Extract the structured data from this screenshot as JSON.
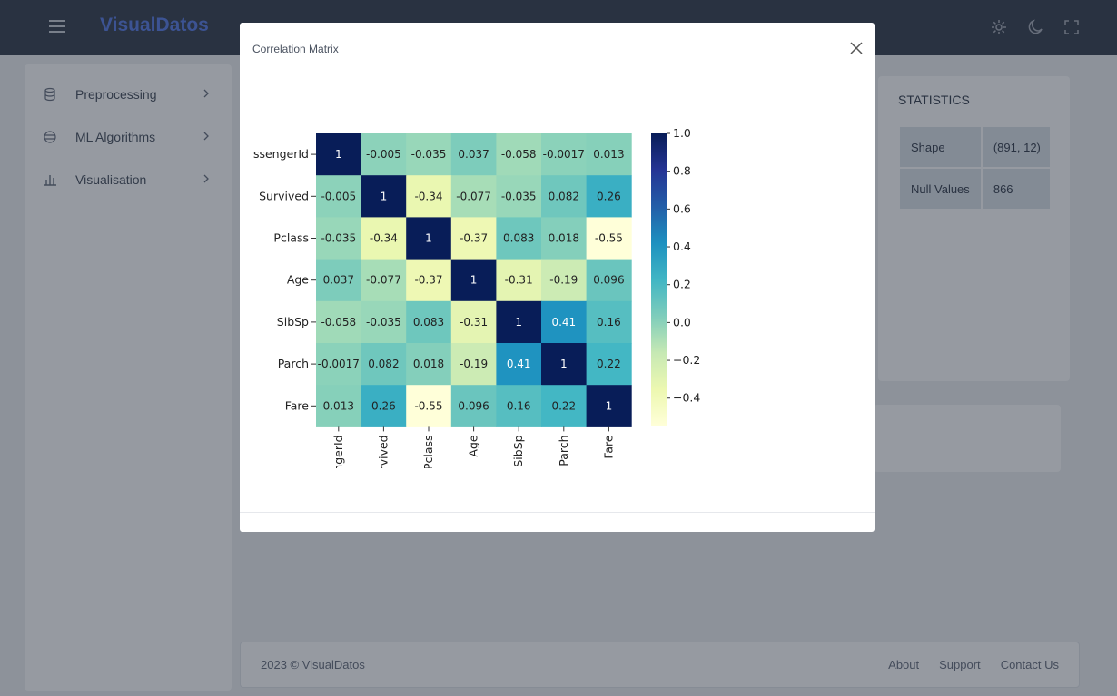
{
  "app": {
    "brand": "VisualDatos"
  },
  "topbar": {
    "icons": [
      "menu-icon",
      "gear-icon",
      "moon-icon",
      "fullscreen-icon"
    ]
  },
  "sidebar": {
    "items": [
      {
        "label": "Preprocessing",
        "icon": "database-icon"
      },
      {
        "label": "ML Algorithms",
        "icon": "layers-icon"
      },
      {
        "label": "Visualisation",
        "icon": "bar-chart-icon"
      }
    ]
  },
  "statistics": {
    "title": "STATISTICS",
    "rows": [
      {
        "label": "Shape",
        "value": "(891, 12)"
      },
      {
        "label": "Null Values",
        "value": "866"
      }
    ]
  },
  "footer": {
    "copyright": "2023 © VisualDatos",
    "links": [
      "About",
      "Support",
      "Contact Us"
    ]
  },
  "modal": {
    "title": "Correlation Matrix"
  },
  "chart_data": {
    "type": "heatmap",
    "title": "",
    "row_labels": [
      "PassengerId",
      "Survived",
      "Pclass",
      "Age",
      "SibSp",
      "Parch",
      "Fare"
    ],
    "col_labels": [
      "PassengerId",
      "Survived",
      "Pclass",
      "Age",
      "SibSp",
      "Parch",
      "Fare"
    ],
    "values": [
      [
        1,
        -0.005,
        -0.035,
        0.037,
        -0.058,
        -0.0017,
        0.013
      ],
      [
        -0.005,
        1,
        -0.34,
        -0.077,
        -0.035,
        0.082,
        0.26
      ],
      [
        -0.035,
        -0.34,
        1,
        -0.37,
        0.083,
        0.018,
        -0.55
      ],
      [
        0.037,
        -0.077,
        -0.37,
        1,
        -0.31,
        -0.19,
        0.096
      ],
      [
        -0.058,
        -0.035,
        0.083,
        -0.31,
        1,
        0.41,
        0.16
      ],
      [
        -0.0017,
        0.082,
        0.018,
        -0.19,
        0.41,
        1,
        0.22
      ],
      [
        0.013,
        0.26,
        -0.55,
        0.096,
        0.16,
        0.22,
        1
      ]
    ],
    "colormap": "YlGnBu",
    "colorbar": {
      "range": [
        -0.55,
        1.0
      ],
      "ticks": [
        1.0,
        0.8,
        0.6,
        0.4,
        0.2,
        0.0,
        -0.2,
        -0.4
      ],
      "tick_labels": [
        "1.0",
        "0.8",
        "0.6",
        "0.4",
        "0.2",
        "0.0",
        "−0.2",
        "−0.4"
      ]
    },
    "annotated": true
  }
}
